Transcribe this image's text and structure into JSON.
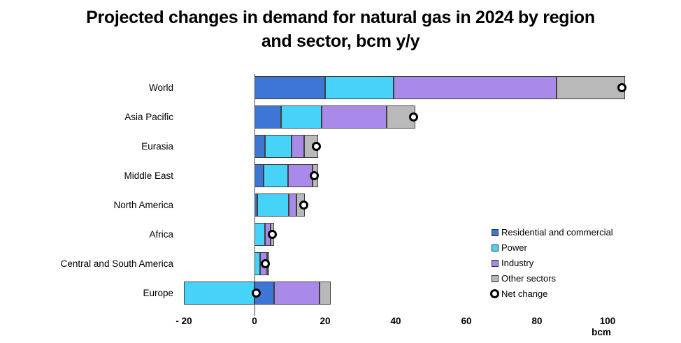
{
  "title": {
    "lines": [
      "Projected changes in demand for natural gas in 2024 by region",
      "and sector, bcm y/y"
    ]
  },
  "chart_data": {
    "type": "bar",
    "orientation": "horizontal",
    "stacked": true,
    "title": "Projected changes in demand for natural gas in 2024 by region and sector, bcm y/y",
    "categories": [
      "World",
      "Asia Pacific",
      "Eurasia",
      "Middle East",
      "North America",
      "Africa",
      "Central and South America",
      "Europe"
    ],
    "series": [
      {
        "name": "Residential and commercial",
        "color": "#3d76d4",
        "values": [
          20,
          7.5,
          3,
          2.5,
          0.8,
          0,
          0,
          5.5
        ]
      },
      {
        "name": "Power",
        "color": "#47d3f8",
        "values": [
          19.5,
          11.5,
          7.5,
          7,
          9,
          3,
          1.5,
          -20
        ]
      },
      {
        "name": "Industry",
        "color": "#a98ae8",
        "values": [
          46,
          18.5,
          3.5,
          7,
          2,
          1.5,
          2,
          13
        ]
      },
      {
        "name": "Other sectors",
        "color": "#b9b9b9",
        "values": [
          19.5,
          8,
          4,
          1.5,
          2.5,
          1,
          0.7,
          3
        ]
      }
    ],
    "marker_series": {
      "name": "Net change",
      "style": "open-circle",
      "values": [
        104,
        45,
        17.5,
        17,
        14,
        5,
        3,
        0.5
      ]
    },
    "xlabel": "bcm",
    "xticks": [
      -20,
      0,
      20,
      40,
      60,
      80,
      100
    ],
    "xtick_labels": [
      "- 20",
      "0",
      "20",
      "40",
      "60",
      "80",
      "100"
    ],
    "xlim": [
      -21,
      110
    ],
    "grid": false,
    "legend_position": "inside-right-bottom"
  },
  "colors": {
    "axis": "#404040",
    "text": "#000000",
    "segment_border": "#3f3f3f",
    "marker_fill": "#ffffff",
    "marker_ring": "#000000"
  }
}
